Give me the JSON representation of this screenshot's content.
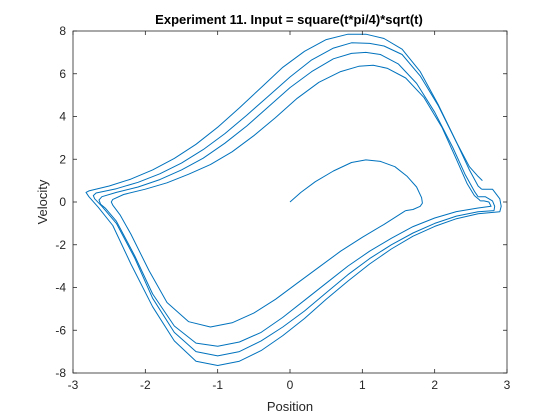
{
  "chart_data": {
    "type": "line",
    "title": "Experiment 11. Input = square(t*pi/4)*sqrt(t)",
    "xlabel": "Position",
    "ylabel": "Velocity",
    "xlim": [
      -3,
      3
    ],
    "ylim": [
      -8,
      8
    ],
    "xticks": [
      -3,
      -2,
      -1,
      0,
      1,
      2,
      3
    ],
    "yticks": [
      -8,
      -6,
      -4,
      -2,
      0,
      2,
      4,
      6,
      8
    ],
    "grid": false,
    "box": true,
    "line_color": "#0072BD",
    "series": [
      {
        "x": [
          0,
          0.15,
          0.35,
          0.6,
          0.85,
          1.05,
          1.25,
          1.45,
          1.62,
          1.75,
          1.82,
          1.83,
          1.8,
          1.7,
          1.6
        ],
        "y": [
          0,
          0.45,
          0.95,
          1.45,
          1.85,
          1.97,
          1.9,
          1.65,
          1.2,
          0.7,
          0.2,
          -0.05,
          -0.2,
          -0.35,
          -0.4
        ]
      },
      {
        "x": [
          1.6,
          1.3,
          1.0,
          0.7,
          0.4,
          0.1,
          -0.2,
          -0.5,
          -0.8,
          -1.1,
          -1.4,
          -1.7,
          -1.95,
          -2.2,
          -2.35,
          -2.45,
          -2.47,
          -2.45,
          -2.3,
          -2.0,
          -1.7,
          -1.4,
          -1.1,
          -0.8,
          -0.5,
          -0.2,
          0.1,
          0.4,
          0.7,
          0.95,
          1.15,
          1.35,
          1.6,
          1.85,
          2.1,
          2.3,
          2.45,
          2.55,
          2.62,
          2.63
        ],
        "y": [
          -0.4,
          -1.05,
          -1.65,
          -2.3,
          -3.05,
          -3.8,
          -4.55,
          -5.2,
          -5.65,
          -5.85,
          -5.6,
          -4.7,
          -3.2,
          -1.5,
          -0.6,
          -0.15,
          0.0,
          0.12,
          0.35,
          0.6,
          0.9,
          1.3,
          1.75,
          2.35,
          3.1,
          3.95,
          4.85,
          5.6,
          6.1,
          6.35,
          6.4,
          6.25,
          5.8,
          4.9,
          3.5,
          2.0,
          0.85,
          0.3,
          0.1,
          0.05
        ]
      },
      {
        "x": [
          2.63,
          2.68,
          2.75,
          2.78,
          2.6,
          2.3,
          2.0,
          1.7,
          1.4,
          1.1,
          0.8,
          0.5,
          0.2,
          -0.1,
          -0.4,
          -0.7,
          -1.0,
          -1.3,
          -1.6,
          -1.9,
          -2.15,
          -2.4,
          -2.55,
          -2.62,
          -2.64,
          -2.6,
          -2.4,
          -2.1,
          -1.8,
          -1.5,
          -1.2,
          -0.9,
          -0.6,
          -0.3,
          0.0,
          0.3,
          0.6,
          0.85,
          1.05,
          1.25,
          1.5,
          1.75,
          2.0,
          2.25,
          2.42,
          2.55,
          2.6,
          2.61
        ],
        "y": [
          0.05,
          0.05,
          0.0,
          -0.2,
          -0.28,
          -0.45,
          -0.75,
          -1.15,
          -1.7,
          -2.3,
          -3.0,
          -3.8,
          -4.6,
          -5.4,
          -6.1,
          -6.55,
          -6.75,
          -6.6,
          -5.8,
          -4.3,
          -2.5,
          -0.9,
          -0.3,
          -0.1,
          0.1,
          0.25,
          0.45,
          0.7,
          1.05,
          1.5,
          2.05,
          2.75,
          3.55,
          4.45,
          5.35,
          6.1,
          6.7,
          6.95,
          7.0,
          6.9,
          6.45,
          5.55,
          4.2,
          2.55,
          1.3,
          0.5,
          0.25,
          0.25
        ]
      },
      {
        "x": [
          2.61,
          2.7,
          2.8,
          2.83,
          2.82,
          2.6,
          2.3,
          2.0,
          1.7,
          1.4,
          1.1,
          0.8,
          0.5,
          0.2,
          -0.1,
          -0.4,
          -0.7,
          -1.0,
          -1.3,
          -1.6,
          -1.9,
          -2.15,
          -2.4,
          -2.6,
          -2.7,
          -2.72,
          -2.68,
          -2.4,
          -2.1,
          -1.8,
          -1.5,
          -1.2,
          -0.9,
          -0.6,
          -0.3,
          0.0,
          0.3,
          0.6,
          0.85,
          1.1,
          1.3,
          1.55,
          1.8,
          2.05,
          2.3,
          2.48,
          2.6,
          2.65
        ],
        "y": [
          0.25,
          0.25,
          0.05,
          -0.2,
          -0.4,
          -0.46,
          -0.66,
          -1.0,
          -1.45,
          -2.0,
          -2.65,
          -3.4,
          -4.25,
          -5.1,
          -5.85,
          -6.5,
          -7.0,
          -7.2,
          -7.0,
          -6.1,
          -4.5,
          -2.6,
          -1.0,
          -0.2,
          0.15,
          0.3,
          0.42,
          0.62,
          0.92,
          1.32,
          1.82,
          2.45,
          3.2,
          4.05,
          4.95,
          5.85,
          6.65,
          7.2,
          7.45,
          7.42,
          7.3,
          6.9,
          5.9,
          4.5,
          2.8,
          1.5,
          0.75,
          0.6
        ]
      },
      {
        "x": [
          2.65,
          2.8,
          2.9,
          2.92,
          2.9,
          2.6,
          2.3,
          2.0,
          1.7,
          1.4,
          1.1,
          0.8,
          0.5,
          0.2,
          -0.1,
          -0.4,
          -0.7,
          -1.0,
          -1.3,
          -1.6,
          -1.9,
          -2.2,
          -2.45,
          -2.65,
          -2.78,
          -2.82,
          -2.78,
          -2.5,
          -2.2,
          -1.9,
          -1.6,
          -1.3,
          -1.0,
          -0.7,
          -0.4,
          -0.1,
          0.2,
          0.5,
          0.8,
          1.05,
          1.3,
          1.55,
          1.8,
          2.05,
          2.3,
          2.48,
          2.6,
          2.66
        ],
        "y": [
          0.6,
          0.6,
          0.15,
          -0.2,
          -0.46,
          -0.55,
          -0.78,
          -1.14,
          -1.6,
          -2.2,
          -2.9,
          -3.7,
          -4.55,
          -5.45,
          -6.25,
          -6.95,
          -7.45,
          -7.65,
          -7.45,
          -6.5,
          -4.9,
          -2.9,
          -1.1,
          -0.25,
          0.25,
          0.45,
          0.52,
          0.75,
          1.07,
          1.5,
          2.04,
          2.7,
          3.5,
          4.4,
          5.35,
          6.3,
          7.05,
          7.6,
          7.85,
          7.85,
          7.65,
          7.15,
          6.1,
          4.55,
          2.8,
          1.65,
          1.2,
          1.0
        ]
      }
    ]
  }
}
